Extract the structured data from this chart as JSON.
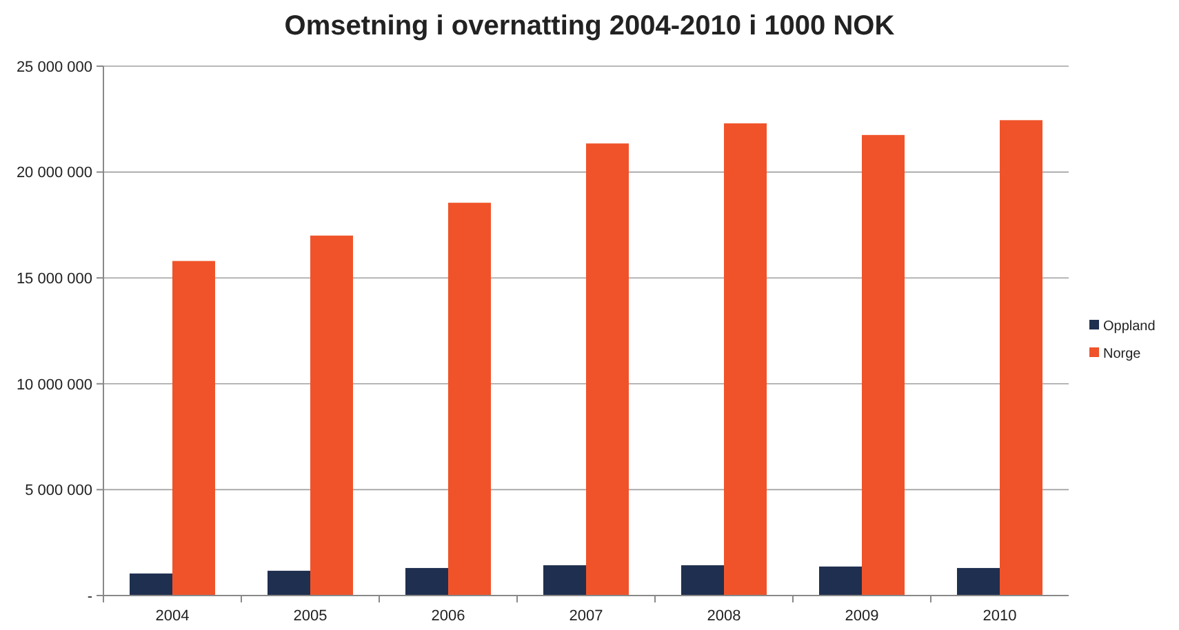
{
  "chart_data": {
    "type": "bar",
    "title": "Omsetning i overnatting 2004-2010 i 1000 NOK",
    "categories": [
      "2004",
      "2005",
      "2006",
      "2007",
      "2008",
      "2009",
      "2010"
    ],
    "series": [
      {
        "name": "Oppland",
        "color": "#1f2f4f",
        "values": [
          1040000,
          1170000,
          1300000,
          1430000,
          1430000,
          1370000,
          1300000
        ]
      },
      {
        "name": "Norge",
        "color": "#f0532a",
        "values": [
          15800000,
          17000000,
          18550000,
          21350000,
          22300000,
          21750000,
          22450000
        ]
      }
    ],
    "ylim": [
      0,
      25000000
    ],
    "yticks": [
      {
        "value": 0,
        "label": "-"
      },
      {
        "value": 5000000,
        "label": "5 000 000"
      },
      {
        "value": 10000000,
        "label": "10 000 000"
      },
      {
        "value": 15000000,
        "label": "15 000 000"
      },
      {
        "value": 20000000,
        "label": "20 000 000"
      },
      {
        "value": 25000000,
        "label": "25 000 000"
      }
    ],
    "grid": "y",
    "legend": "right"
  }
}
